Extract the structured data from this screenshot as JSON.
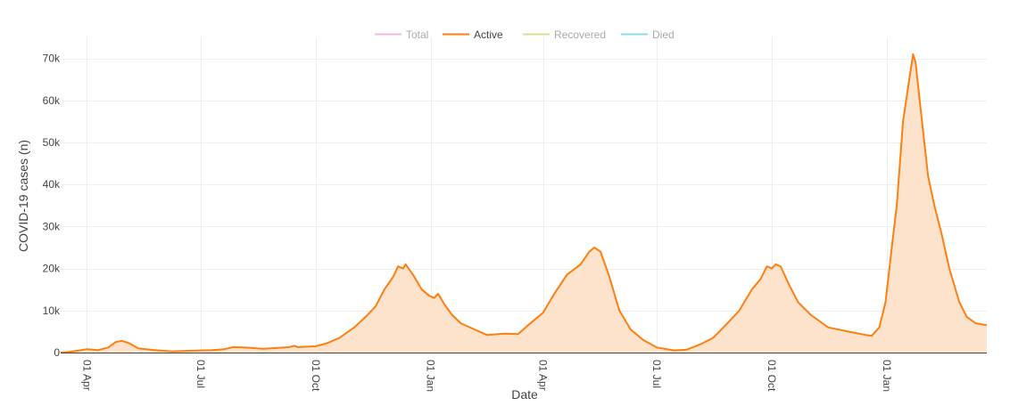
{
  "chart_data": {
    "type": "area",
    "xlabel": "Date",
    "ylabel": "COVID-19 cases (n)",
    "x_range": [
      "2020-03-11",
      "2022-03-22"
    ],
    "ylim": [
      0,
      75000
    ],
    "y_ticks": [
      {
        "value": 0,
        "label": "0"
      },
      {
        "value": 10000,
        "label": "10k"
      },
      {
        "value": 20000,
        "label": "20k"
      },
      {
        "value": 30000,
        "label": "30k"
      },
      {
        "value": 40000,
        "label": "40k"
      },
      {
        "value": 50000,
        "label": "50k"
      },
      {
        "value": 60000,
        "label": "60k"
      },
      {
        "value": 70000,
        "label": "70k"
      }
    ],
    "x_ticks": [
      {
        "date": "2020-04-01",
        "label": "01 Apr"
      },
      {
        "date": "2020-07-01",
        "label": "01 Jul"
      },
      {
        "date": "2020-10-01",
        "label": "01 Oct"
      },
      {
        "date": "2021-01-01",
        "label": "01 Jan"
      },
      {
        "date": "2021-04-01",
        "label": "01 Apr"
      },
      {
        "date": "2021-07-01",
        "label": "01 Jul"
      },
      {
        "date": "2021-10-01",
        "label": "01 Oct"
      },
      {
        "date": "2022-01-01",
        "label": "01 Jan"
      }
    ],
    "grid": true,
    "legend_position": "top-center",
    "legend": [
      {
        "name": "Total",
        "color": "#e377c2",
        "visible": false
      },
      {
        "name": "Active",
        "color": "#ff7f0e",
        "visible": true
      },
      {
        "name": "Recovered",
        "color": "#bcbd22",
        "visible": false
      },
      {
        "name": "Died",
        "color": "#17becf",
        "visible": false
      }
    ],
    "series": [
      {
        "name": "Active",
        "color": "#ff7f0e",
        "fill_color": "#fde3cc",
        "points": [
          [
            "2020-03-11",
            0
          ],
          [
            "2020-03-18",
            150
          ],
          [
            "2020-03-26",
            500
          ],
          [
            "2020-04-01",
            800
          ],
          [
            "2020-04-10",
            600
          ],
          [
            "2020-04-18",
            1200
          ],
          [
            "2020-04-24",
            2500
          ],
          [
            "2020-04-29",
            2800
          ],
          [
            "2020-05-05",
            2200
          ],
          [
            "2020-05-12",
            1000
          ],
          [
            "2020-05-25",
            600
          ],
          [
            "2020-06-08",
            300
          ],
          [
            "2020-07-01",
            500
          ],
          [
            "2020-07-10",
            600
          ],
          [
            "2020-07-20",
            800
          ],
          [
            "2020-07-27",
            1300
          ],
          [
            "2020-08-05",
            1200
          ],
          [
            "2020-08-20",
            900
          ],
          [
            "2020-09-01",
            1100
          ],
          [
            "2020-09-10",
            1300
          ],
          [
            "2020-09-14",
            1600
          ],
          [
            "2020-09-17",
            1300
          ],
          [
            "2020-10-01",
            1500
          ],
          [
            "2020-10-10",
            2200
          ],
          [
            "2020-10-20",
            3500
          ],
          [
            "2020-11-01",
            6000
          ],
          [
            "2020-11-10",
            8500
          ],
          [
            "2020-11-18",
            11000
          ],
          [
            "2020-11-25",
            15000
          ],
          [
            "2020-12-02",
            18000
          ],
          [
            "2020-12-06",
            20500
          ],
          [
            "2020-12-10",
            20000
          ],
          [
            "2020-12-12",
            21000
          ],
          [
            "2020-12-18",
            18500
          ],
          [
            "2020-12-25",
            15000
          ],
          [
            "2020-12-31",
            13500
          ],
          [
            "2021-01-04",
            13000
          ],
          [
            "2021-01-07",
            14000
          ],
          [
            "2021-01-12",
            11500
          ],
          [
            "2021-01-18",
            9000
          ],
          [
            "2021-01-25",
            7000
          ],
          [
            "2021-02-05",
            5500
          ],
          [
            "2021-02-15",
            4200
          ],
          [
            "2021-03-01",
            4500
          ],
          [
            "2021-03-12",
            4400
          ],
          [
            "2021-03-20",
            6500
          ],
          [
            "2021-04-01",
            9500
          ],
          [
            "2021-04-10",
            14000
          ],
          [
            "2021-04-20",
            18500
          ],
          [
            "2021-05-01",
            21000
          ],
          [
            "2021-05-08",
            24000
          ],
          [
            "2021-05-12",
            25000
          ],
          [
            "2021-05-17",
            24000
          ],
          [
            "2021-05-24",
            18000
          ],
          [
            "2021-06-01",
            10000
          ],
          [
            "2021-06-10",
            5500
          ],
          [
            "2021-06-20",
            3000
          ],
          [
            "2021-07-01",
            1200
          ],
          [
            "2021-07-15",
            500
          ],
          [
            "2021-07-25",
            700
          ],
          [
            "2021-08-05",
            2000
          ],
          [
            "2021-08-15",
            3500
          ],
          [
            "2021-08-25",
            6500
          ],
          [
            "2021-09-05",
            10000
          ],
          [
            "2021-09-15",
            15000
          ],
          [
            "2021-09-22",
            17500
          ],
          [
            "2021-09-27",
            20500
          ],
          [
            "2021-10-01",
            20000
          ],
          [
            "2021-10-04",
            21000
          ],
          [
            "2021-10-08",
            20500
          ],
          [
            "2021-10-15",
            16000
          ],
          [
            "2021-10-22",
            12000
          ],
          [
            "2021-11-01",
            9000
          ],
          [
            "2021-11-15",
            6000
          ],
          [
            "2021-12-01",
            5000
          ],
          [
            "2021-12-15",
            4200
          ],
          [
            "2021-12-20",
            4000
          ],
          [
            "2021-12-26",
            6000
          ],
          [
            "2021-12-31",
            12000
          ],
          [
            "2022-01-05",
            25000
          ],
          [
            "2022-01-09",
            35000
          ],
          [
            "2022-01-14",
            55000
          ],
          [
            "2022-01-19",
            65000
          ],
          [
            "2022-01-22",
            71000
          ],
          [
            "2022-01-24",
            69000
          ],
          [
            "2022-01-28",
            58000
          ],
          [
            "2022-02-03",
            42000
          ],
          [
            "2022-02-08",
            35000
          ],
          [
            "2022-02-14",
            28000
          ],
          [
            "2022-02-20",
            20000
          ],
          [
            "2022-02-28",
            12000
          ],
          [
            "2022-03-06",
            8500
          ],
          [
            "2022-03-13",
            7000
          ],
          [
            "2022-03-22",
            6500
          ]
        ]
      }
    ]
  }
}
